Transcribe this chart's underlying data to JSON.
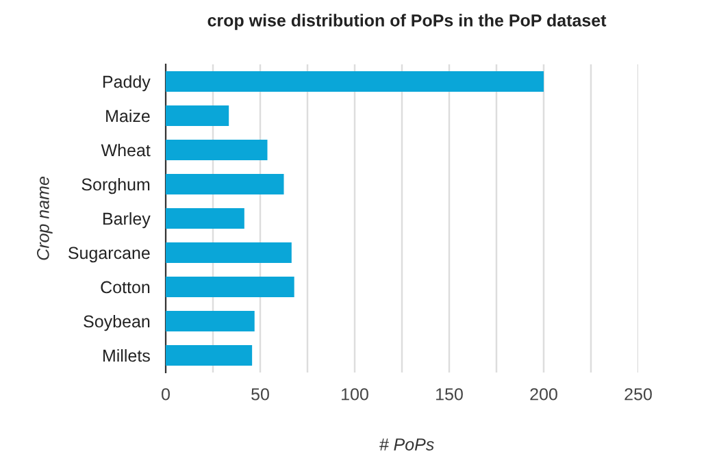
{
  "chart_data": {
    "type": "bar",
    "orientation": "horizontal",
    "title": "crop wise distribution of PoPs in the PoP dataset",
    "xlabel": "# PoPs",
    "ylabel": "Crop name",
    "categories": [
      "Paddy",
      "Maize",
      "Wheat",
      "Sorghum",
      "Barley",
      "Sugarcane",
      "Cotton",
      "Soybean",
      "Millets"
    ],
    "values": [
      200,
      33.4,
      53.8,
      62.5,
      41.6,
      66.6,
      68,
      47,
      45.7
    ],
    "color": "#0aa6d8",
    "xlim": [
      0,
      250
    ],
    "xticks": [
      0,
      {
        "value": 25,
        "label": null
      },
      50,
      {
        "value": 75,
        "label": null
      },
      100,
      {
        "value": 125,
        "label": null
      },
      150,
      {
        "value": 175,
        "label": null
      },
      200,
      {
        "value": 225,
        "label": null
      },
      250
    ],
    "grid": "x"
  }
}
